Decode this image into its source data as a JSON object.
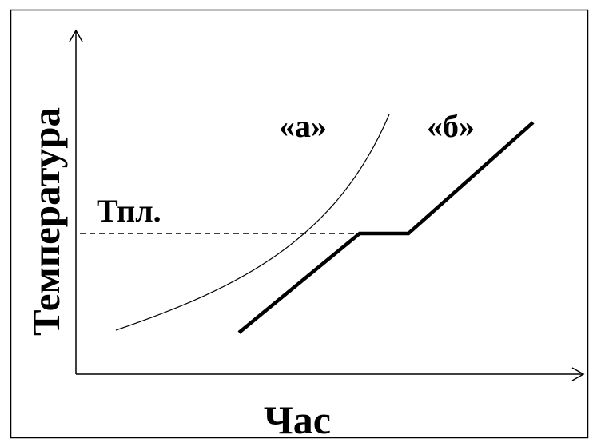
{
  "diagram": {
    "y_axis_label": "Температура",
    "x_axis_label": "Час",
    "melting_label": "Тпл.",
    "curve_a_label": "«а»",
    "curve_b_label": "«б»"
  },
  "colors": {
    "ink": "#000000",
    "background": "#ffffff"
  }
}
